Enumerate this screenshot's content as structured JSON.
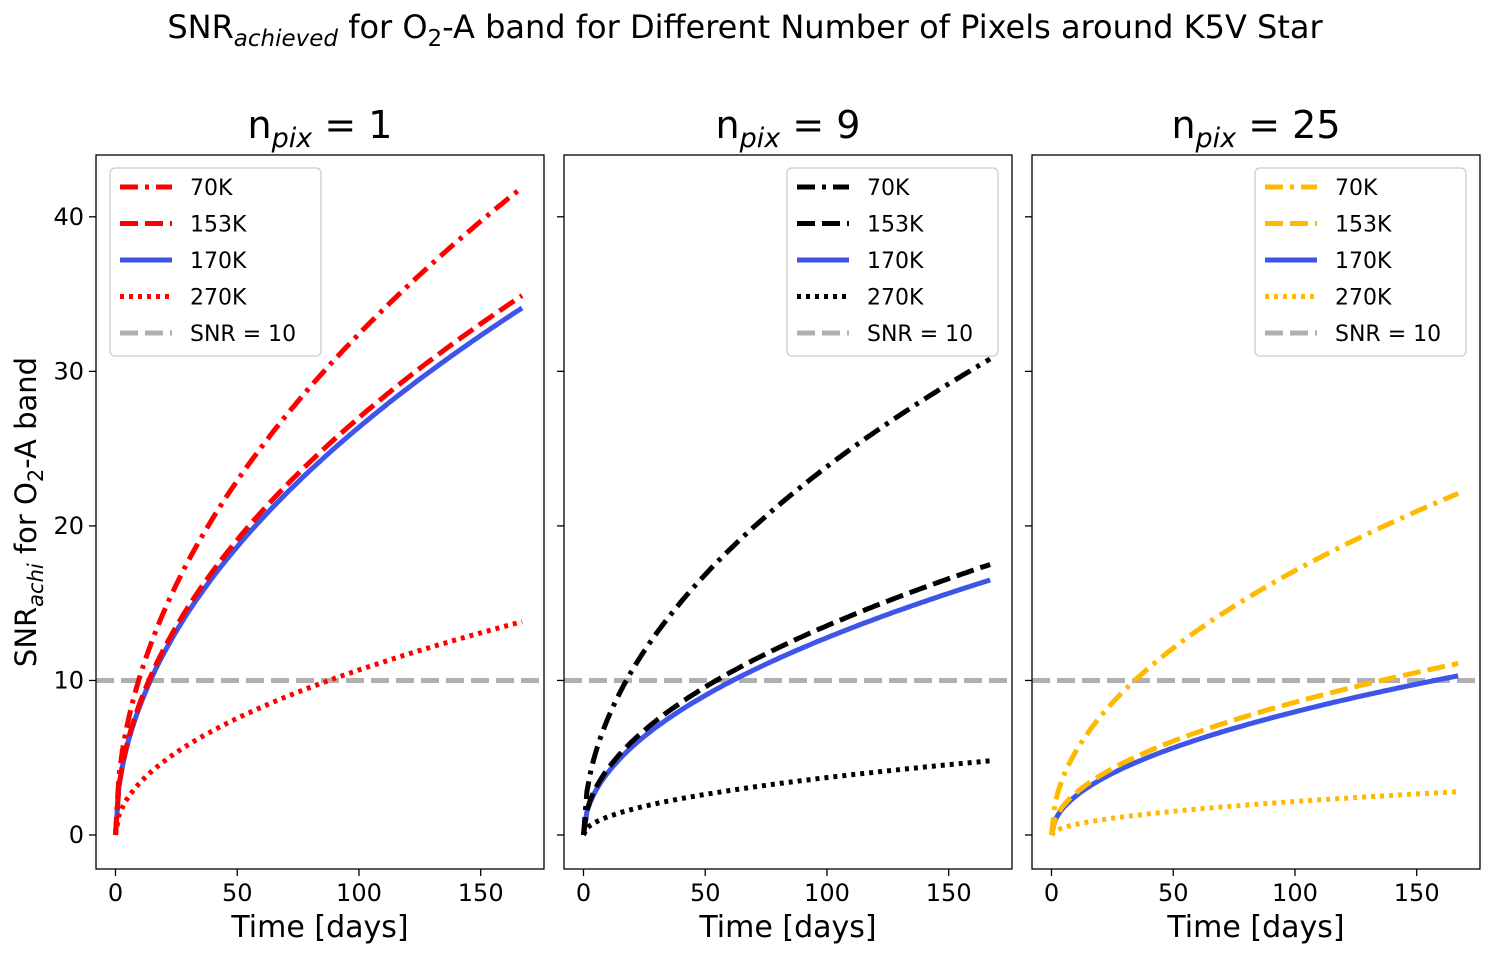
{
  "figure": {
    "title_main": "SNR",
    "title_sub": "achieved",
    "title_rest1": " for O",
    "title_sub2": "2",
    "title_rest2": "-A band for Different Number of Pixels around K5V Star",
    "ylabel_main": "SNR",
    "ylabel_sub": "achi",
    "ylabel_rest1": " for O",
    "ylabel_sub2": "2",
    "ylabel_rest2": "-A band"
  },
  "chart_data": [
    {
      "type": "line",
      "title_main": "n",
      "title_sub": "pix",
      "title_rest": " = 1",
      "xlabel": "Time [days]",
      "xlim": [
        -8,
        176
      ],
      "ylim": [
        -2.2,
        44
      ],
      "xticks": [
        0,
        50,
        100,
        150
      ],
      "yticks": [
        0,
        10,
        20,
        30,
        40
      ],
      "legend_position": "upper-left",
      "threshold": {
        "name": "SNR = 10",
        "value": 10,
        "color": "#b0b0b0"
      },
      "series": [
        {
          "name": "70K",
          "color": "#ff0000",
          "style": "dashdot",
          "t_max": 167,
          "snr_at_t_max": 41.9
        },
        {
          "name": "153K",
          "color": "#ff0000",
          "style": "dashed",
          "t_max": 167,
          "snr_at_t_max": 34.9
        },
        {
          "name": "170K",
          "color": "#3d55e8",
          "style": "solid",
          "t_max": 167,
          "snr_at_t_max": 34.1
        },
        {
          "name": "270K",
          "color": "#ff0000",
          "style": "dotted",
          "t_max": 167,
          "snr_at_t_max": 13.8
        }
      ]
    },
    {
      "type": "line",
      "title_main": "n",
      "title_sub": "pix",
      "title_rest": " = 9",
      "xlabel": "Time [days]",
      "xlim": [
        -8,
        176
      ],
      "ylim": [
        -2.2,
        44
      ],
      "xticks": [
        0,
        50,
        100,
        150
      ],
      "yticks": [
        0,
        10,
        20,
        30,
        40
      ],
      "legend_position": "upper-right",
      "threshold": {
        "name": "SNR = 10",
        "value": 10,
        "color": "#b0b0b0"
      },
      "series": [
        {
          "name": "70K",
          "color": "#000000",
          "style": "dashdot",
          "t_max": 167,
          "snr_at_t_max": 30.8
        },
        {
          "name": "153K",
          "color": "#000000",
          "style": "dashed",
          "t_max": 167,
          "snr_at_t_max": 17.5
        },
        {
          "name": "170K",
          "color": "#3d55e8",
          "style": "solid",
          "t_max": 167,
          "snr_at_t_max": 16.5
        },
        {
          "name": "270K",
          "color": "#000000",
          "style": "dotted",
          "t_max": 167,
          "snr_at_t_max": 4.8
        }
      ]
    },
    {
      "type": "line",
      "title_main": "n",
      "title_sub": "pix",
      "title_rest": " = 25",
      "xlabel": "Time [days]",
      "xlim": [
        -8,
        176
      ],
      "ylim": [
        -2.2,
        44
      ],
      "xticks": [
        0,
        50,
        100,
        150
      ],
      "yticks": [
        0,
        10,
        20,
        30,
        40
      ],
      "legend_position": "upper-right",
      "threshold": {
        "name": "SNR = 10",
        "value": 10,
        "color": "#b0b0b0"
      },
      "series": [
        {
          "name": "70K",
          "color": "#ffb900",
          "style": "dashdot",
          "t_max": 167,
          "snr_at_t_max": 22.1
        },
        {
          "name": "153K",
          "color": "#ffb900",
          "style": "dashed",
          "t_max": 167,
          "snr_at_t_max": 11.1
        },
        {
          "name": "170K",
          "color": "#3d55e8",
          "style": "solid",
          "t_max": 167,
          "snr_at_t_max": 10.3
        },
        {
          "name": "270K",
          "color": "#ffb900",
          "style": "dotted",
          "t_max": 167,
          "snr_at_t_max": 2.8
        }
      ]
    }
  ]
}
